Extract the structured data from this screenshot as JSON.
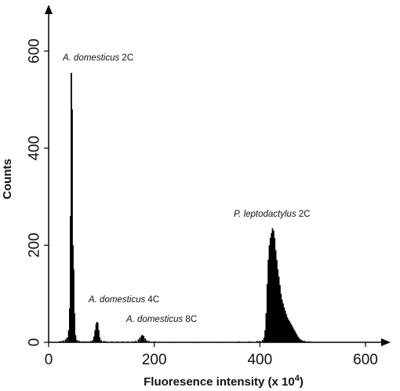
{
  "chart_data": {
    "type": "bar",
    "xlabel": "Fluoresence intensity (x 10",
    "xlabel_sup": "4",
    "xlabel_close": ")",
    "ylabel": "Counts",
    "xlim": [
      0,
      640
    ],
    "ylim": [
      0,
      650
    ],
    "xticks": [
      0,
      200,
      400,
      600
    ],
    "yticks": [
      0,
      200,
      400,
      600
    ],
    "grid": false,
    "annotations": [
      {
        "species": "A. domesticus",
        "ploidy": "2C",
        "x": 45,
        "y": 560
      },
      {
        "species": "A. domesticus",
        "ploidy": "4C",
        "x": 92,
        "y": 85
      },
      {
        "species": "A. domesticus",
        "ploidy": "8C",
        "x": 178,
        "y": 40
      },
      {
        "species": "P. leptodactylus",
        "ploidy": "2C",
        "x": 425,
        "y": 260
      }
    ],
    "bins": [
      [
        20,
        2
      ],
      [
        24,
        3
      ],
      [
        28,
        4
      ],
      [
        32,
        6
      ],
      [
        35,
        10
      ],
      [
        38,
        25
      ],
      [
        40,
        70
      ],
      [
        41.5,
        260
      ],
      [
        43,
        555
      ],
      [
        44.5,
        480
      ],
      [
        46,
        200
      ],
      [
        47.5,
        150
      ],
      [
        49,
        60
      ],
      [
        51,
        15
      ],
      [
        54,
        5
      ],
      [
        58,
        3
      ],
      [
        62,
        2
      ],
      [
        66,
        2
      ],
      [
        70,
        2
      ],
      [
        75,
        2
      ],
      [
        80,
        3
      ],
      [
        84,
        5
      ],
      [
        86,
        12
      ],
      [
        88,
        25
      ],
      [
        90,
        38
      ],
      [
        91.5,
        42
      ],
      [
        93,
        40
      ],
      [
        95,
        25
      ],
      [
        97,
        10
      ],
      [
        100,
        4
      ],
      [
        105,
        3
      ],
      [
        110,
        2
      ],
      [
        120,
        2
      ],
      [
        130,
        2
      ],
      [
        140,
        2
      ],
      [
        150,
        2
      ],
      [
        160,
        2
      ],
      [
        165,
        3
      ],
      [
        170,
        6
      ],
      [
        173,
        10
      ],
      [
        176,
        14
      ],
      [
        178,
        15
      ],
      [
        180,
        13
      ],
      [
        183,
        8
      ],
      [
        186,
        4
      ],
      [
        190,
        3
      ],
      [
        200,
        2
      ],
      [
        210,
        1
      ],
      [
        240,
        1
      ],
      [
        280,
        1
      ],
      [
        320,
        1
      ],
      [
        360,
        2
      ],
      [
        380,
        2
      ],
      [
        395,
        3
      ],
      [
        400,
        3
      ],
      [
        405,
        5
      ],
      [
        408,
        10
      ],
      [
        410,
        25
      ],
      [
        412,
        60
      ],
      [
        414,
        120
      ],
      [
        416,
        170
      ],
      [
        418,
        200
      ],
      [
        420,
        215
      ],
      [
        422,
        225
      ],
      [
        424,
        235
      ],
      [
        426,
        230
      ],
      [
        428,
        215
      ],
      [
        430,
        190
      ],
      [
        432,
        170
      ],
      [
        434,
        150
      ],
      [
        436,
        135
      ],
      [
        438,
        118
      ],
      [
        440,
        100
      ],
      [
        442,
        88
      ],
      [
        444,
        80
      ],
      [
        446,
        72
      ],
      [
        448,
        65
      ],
      [
        450,
        58
      ],
      [
        452,
        52
      ],
      [
        454,
        47
      ],
      [
        456,
        44
      ],
      [
        458,
        40
      ],
      [
        460,
        36
      ],
      [
        462,
        32
      ],
      [
        464,
        28
      ],
      [
        466,
        24
      ],
      [
        468,
        20
      ],
      [
        470,
        16
      ],
      [
        472,
        12
      ],
      [
        474,
        9
      ],
      [
        476,
        7
      ],
      [
        478,
        5
      ],
      [
        480,
        4
      ],
      [
        482,
        3
      ],
      [
        485,
        3
      ],
      [
        490,
        2
      ],
      [
        495,
        2
      ],
      [
        500,
        1
      ]
    ]
  }
}
